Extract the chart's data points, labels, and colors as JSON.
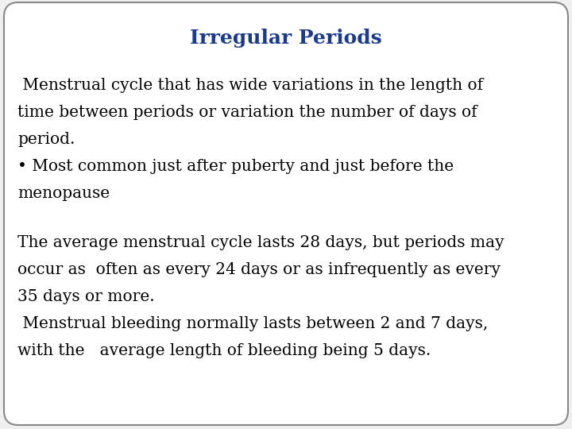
{
  "title": "Irregular Periods",
  "title_color": "#1a3a8f",
  "title_fontsize": 18,
  "background_color": "#f0f0f0",
  "box_facecolor": "#ffffff",
  "box_edge_color": "#888888",
  "text_color": "#000000",
  "body_fontsize": 14.5,
  "paragraph1_lines": [
    " Menstrual cycle that has wide variations in the length of",
    "time between periods or variation the number of days of",
    "period.",
    "• Most common just after puberty and just before the",
    "menopause"
  ],
  "paragraph2_lines": [
    "The average menstrual cycle lasts 28 days, but periods may",
    "occur as  often as every 24 days or as infrequently as every",
    "35 days or more.",
    " Menstrual bleeding normally lasts between 2 and 7 days,",
    "with the   average length of bleeding being 5 days."
  ]
}
